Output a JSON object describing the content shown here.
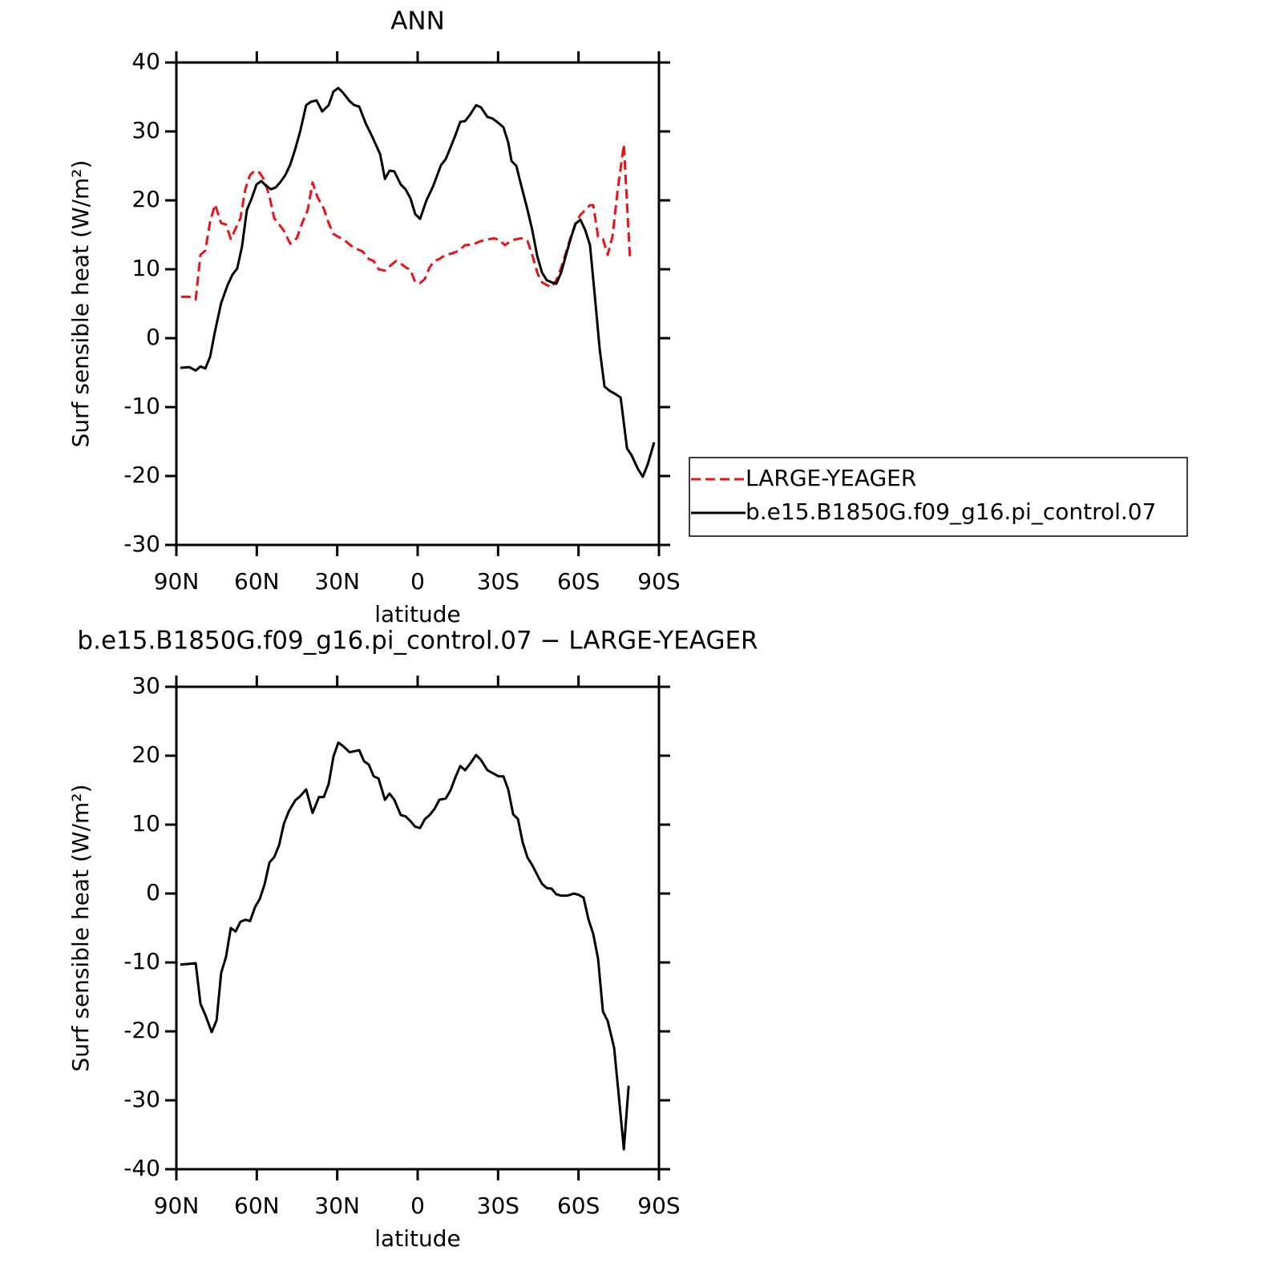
{
  "chart_data": [
    {
      "type": "line",
      "title": "ANN",
      "xlabel": "latitude",
      "ylabel": "Surf sensible heat (W/m²)",
      "xlim": [
        90,
        -90
      ],
      "ylim": [
        -30,
        40
      ],
      "xticks": [
        {
          "value": 90,
          "label": "90N"
        },
        {
          "value": 60,
          "label": "60N"
        },
        {
          "value": 30,
          "label": "30N"
        },
        0,
        {
          "value": -30,
          "label": "30S"
        },
        {
          "value": -60,
          "label": "60S"
        },
        {
          "value": -90,
          "label": "90S"
        }
      ],
      "yticks": [
        -30,
        -20,
        -10,
        0,
        10,
        20,
        30,
        40
      ],
      "legend": "right",
      "series": [
        {
          "name": "LARGE-YEAGER",
          "color": "#e8141a",
          "dash": true,
          "x": [
            88.2,
            85.2,
            82.8,
            81,
            79.2,
            77.4,
            75.6,
            73.3,
            71.5,
            69.7,
            67.9,
            66.1,
            64.3,
            62.5,
            60.7,
            58.9,
            57.1,
            55.3,
            53.5,
            51.7,
            49.9,
            47.5,
            45.1,
            42.8,
            41.0,
            39.2,
            37.4,
            35.0,
            33.2,
            31.4,
            29.6,
            27.2,
            24.8,
            22.4,
            20.6,
            18.2,
            16.4,
            14.6,
            12.2,
            9.9,
            8.1,
            6.3,
            4.5,
            2.7,
            0.9,
            -0.9,
            -2.7,
            -4.5,
            -6.3,
            -8.1,
            -10.5,
            -12.9,
            -15.3,
            -17.7,
            -20.7,
            -23.6,
            -26.0,
            -28.4,
            -30.2,
            -32.6,
            -34.4,
            -36.2,
            -38.6,
            -41.0,
            -42.8,
            -44.6,
            -46.4,
            -48.2,
            -50.0,
            -51.7,
            -53.5,
            -55.3,
            -57.1,
            -58.9,
            -60.7,
            -62.5,
            -64.3,
            -65.5,
            -67.3,
            -69.1,
            -70.9,
            -72.7,
            -74.5,
            -76.9,
            -79.2
          ],
          "values": [
            6.0,
            6.0,
            5.6,
            12.1,
            12.7,
            16.9,
            19.4,
            16.7,
            16.5,
            14.4,
            15.9,
            17.4,
            21.6,
            23.7,
            24.3,
            24.0,
            22.9,
            20.6,
            17.4,
            16.5,
            15.6,
            13.7,
            14.5,
            17.0,
            18.6,
            22.6,
            20.5,
            18.8,
            16.7,
            15.1,
            14.7,
            14.2,
            13.4,
            12.9,
            12.6,
            11.5,
            11.2,
            10.0,
            9.8,
            10.6,
            11.2,
            10.8,
            10.3,
            9.9,
            8.1,
            8.0,
            8.6,
            10.3,
            11.2,
            11.5,
            12.1,
            12.3,
            12.7,
            13.5,
            13.6,
            14.1,
            14.3,
            14.5,
            14.3,
            13.5,
            14.0,
            14.3,
            14.5,
            14.1,
            12.0,
            9.5,
            8.1,
            7.7,
            7.4,
            8.4,
            10.2,
            12.4,
            14.7,
            16.7,
            17.9,
            18.6,
            19.3,
            19.3,
            14.7,
            14.4,
            12.1,
            14.8,
            21.2,
            28.1,
            11.5
          ]
        },
        {
          "name": "b.e15.B1850G.f09_g16.pi_control.07",
          "color": "#000000",
          "dash": false,
          "x": [
            88.5,
            85.2,
            82.8,
            81,
            79.2,
            77.4,
            75.6,
            73.3,
            70.9,
            69.1,
            67.3,
            65.5,
            63.7,
            61.9,
            60.1,
            58.3,
            56.5,
            54.7,
            52.9,
            51.1,
            49.3,
            47.5,
            45.7,
            43.9,
            41.6,
            39.8,
            37.7,
            35.6,
            33.2,
            31.4,
            29.6,
            27.8,
            25.4,
            23.6,
            21.8,
            19.4,
            17.0,
            14.0,
            12.2,
            10.5,
            8.7,
            6.3,
            4.5,
            2.7,
            0.9,
            -0.9,
            -3.3,
            -5.7,
            -8.7,
            -10.5,
            -12.3,
            -14.1,
            -15.9,
            -17.7,
            -19.5,
            -21.8,
            -23.6,
            -26.0,
            -27.8,
            -29.6,
            -32.0,
            -33.8,
            -35.0,
            -36.8,
            -38.6,
            -41.0,
            -42.8,
            -44.6,
            -46.4,
            -48.2,
            -50.0,
            -51.7,
            -53.5,
            -55.3,
            -57.1,
            -58.9,
            -60.7,
            -62.5,
            -64.3,
            -66.1,
            -67.9,
            -69.7,
            -71.5,
            -73.3,
            -75.7,
            -78.1,
            -79.8,
            -82.2,
            -84.0,
            -85.8,
            -88.2
          ],
          "values": [
            -4.3,
            -4.2,
            -4.7,
            -4.1,
            -4.4,
            -2.7,
            1.0,
            5.1,
            7.7,
            9.2,
            10.1,
            13.3,
            18.6,
            20.3,
            22.3,
            22.8,
            22.1,
            21.6,
            21.9,
            22.7,
            23.7,
            25.2,
            27.4,
            29.9,
            33.8,
            34.3,
            34.5,
            32.9,
            33.8,
            35.8,
            36.3,
            35.6,
            34.4,
            33.8,
            33.6,
            31.2,
            29.3,
            26.7,
            23.1,
            24.3,
            24.2,
            22.3,
            21.6,
            20.3,
            18.0,
            17.3,
            20.0,
            22.0,
            25.1,
            26.0,
            27.7,
            29.5,
            31.4,
            31.5,
            32.4,
            33.8,
            33.5,
            32.1,
            31.9,
            31.4,
            30.6,
            28.4,
            25.7,
            25.0,
            22.2,
            18.6,
            15.6,
            11.9,
            9.5,
            8.4,
            8.1,
            7.9,
            9.5,
            12.0,
            14.5,
            16.6,
            17.2,
            15.7,
            13.5,
            6.0,
            -1.6,
            -7.0,
            -7.6,
            -8.0,
            -8.6,
            -16.0,
            -17.0,
            -19.0,
            -20.1,
            -18.3,
            -15.1
          ]
        }
      ]
    },
    {
      "type": "line",
      "title": "b.e15.B1850G.f09_g16.pi_control.07 − LARGE-YEAGER",
      "xlabel": "latitude",
      "ylabel": "Surf sensible heat (W/m²)",
      "xlim": [
        90,
        -90
      ],
      "ylim": [
        -40,
        30
      ],
      "xticks": [
        {
          "value": 90,
          "label": "90N"
        },
        {
          "value": 60,
          "label": "60N"
        },
        {
          "value": 30,
          "label": "30N"
        },
        0,
        {
          "value": -30,
          "label": "30S"
        },
        {
          "value": -60,
          "label": "60S"
        },
        {
          "value": -90,
          "label": "90S"
        }
      ],
      "yticks": [
        -40,
        -30,
        -20,
        -10,
        0,
        10,
        20,
        30
      ],
      "series": [
        {
          "color": "#000000",
          "dash": false,
          "x": [
            88.5,
            85.2,
            82.8,
            81,
            79.2,
            76.8,
            75.0,
            73.3,
            71.5,
            69.7,
            67.9,
            66.1,
            64.3,
            62.5,
            60.7,
            58.9,
            57.1,
            55.3,
            53.5,
            51.7,
            49.9,
            48.1,
            45.7,
            43.9,
            41.6,
            39.2,
            36.8,
            35.0,
            33.2,
            31.4,
            29.6,
            27.8,
            25.4,
            21.8,
            20.0,
            18.2,
            16.4,
            14.6,
            12.2,
            10.5,
            8.7,
            6.3,
            4.5,
            2.7,
            0.9,
            -0.9,
            -2.7,
            -4.5,
            -6.3,
            -8.1,
            -10.5,
            -12.3,
            -14.1,
            -15.9,
            -17.7,
            -19.5,
            -21.8,
            -23.6,
            -26.0,
            -28.4,
            -30.2,
            -32.0,
            -33.8,
            -35.6,
            -37.4,
            -39.2,
            -41.0,
            -42.8,
            -44.6,
            -46.4,
            -48.2,
            -50.0,
            -51.7,
            -53.5,
            -55.9,
            -58.3,
            -60.1,
            -61.9,
            -63.7,
            -65.5,
            -67.3,
            -69.1,
            -70.9,
            -73.3,
            -75.1,
            -76.9,
            -78.7
          ],
          "values": [
            -10.3,
            -10.2,
            -10.1,
            -16.0,
            -17.6,
            -20.1,
            -18.4,
            -11.5,
            -9.2,
            -5.0,
            -5.5,
            -4.1,
            -3.8,
            -4.0,
            -2.0,
            -0.8,
            1.3,
            4.5,
            5.3,
            7.0,
            10.1,
            11.9,
            13.5,
            14.1,
            15.1,
            11.7,
            14.0,
            14.0,
            15.9,
            19.9,
            21.9,
            21.4,
            20.5,
            20.8,
            19.2,
            18.7,
            17.0,
            16.7,
            13.6,
            14.5,
            13.6,
            11.4,
            11.2,
            10.5,
            9.7,
            9.5,
            10.8,
            11.4,
            12.3,
            13.6,
            13.8,
            15.0,
            16.9,
            18.5,
            17.9,
            18.8,
            20.1,
            19.4,
            17.9,
            17.4,
            17.0,
            17.0,
            15.1,
            11.5,
            10.8,
            7.4,
            5.2,
            4.1,
            2.7,
            1.4,
            0.8,
            0.7,
            -0.1,
            -0.3,
            -0.3,
            0.0,
            -0.2,
            -0.6,
            -3.7,
            -5.9,
            -9.5,
            -17.1,
            -18.5,
            -22.4,
            -29.7,
            -37.1,
            -27.9
          ]
        }
      ]
    }
  ]
}
